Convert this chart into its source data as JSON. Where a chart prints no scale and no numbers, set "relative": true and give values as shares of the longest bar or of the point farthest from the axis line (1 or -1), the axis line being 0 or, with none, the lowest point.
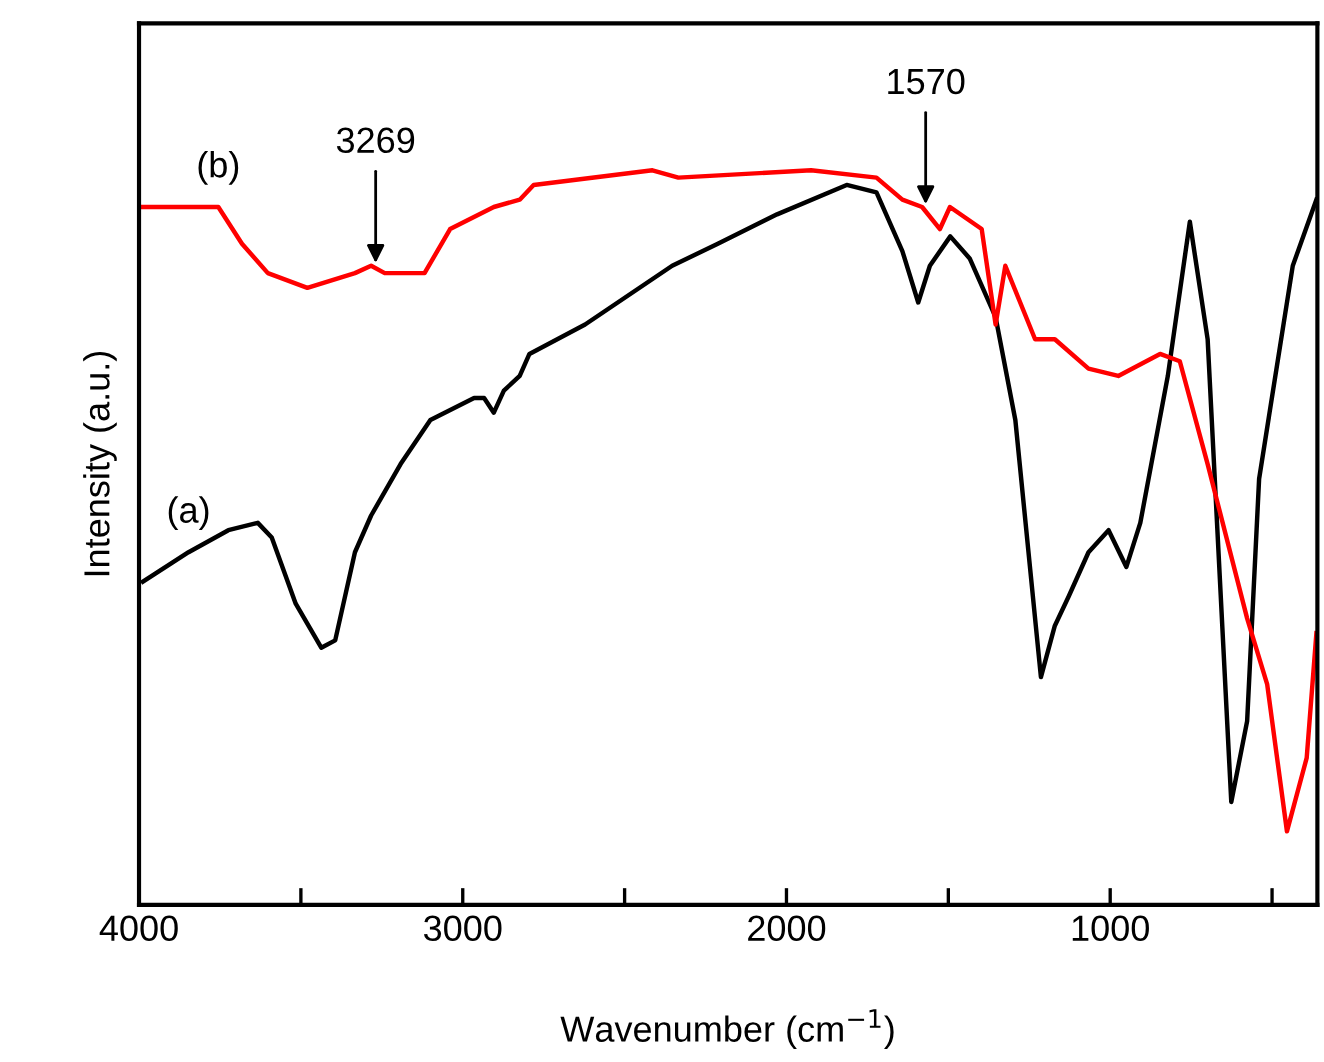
{
  "chart_data": {
    "type": "line",
    "relative": true,
    "xlabel": "Wavenumber (cm$^{−1}$)",
    "ylabel": "Intensity (a.u.)",
    "xlim": [
      4000,
      360
    ],
    "xticks": [
      4000,
      {
        "value": 3500,
        "label": null
      },
      3000,
      {
        "value": 2500,
        "label": null
      },
      2000,
      {
        "value": 1500,
        "label": null
      },
      1000,
      {
        "value": 500,
        "label": null
      }
    ],
    "grid": false,
    "legend": false,
    "line_style": "solid",
    "marker": "none",
    "series": [
      {
        "name": "(a)",
        "color": "#000000",
        "x": [
          3988,
          3847,
          3724,
          3633,
          3590,
          3516,
          3437,
          3394,
          3333,
          3283,
          3192,
          3100,
          2965,
          2934,
          2904,
          2873,
          2824,
          2794,
          2622,
          2353,
          2212,
          2029,
          1814,
          1722,
          1642,
          1593,
          1557,
          1494,
          1434,
          1354,
          1293,
          1214,
          1171,
          1128,
          1067,
          1005,
          950,
          907,
          822,
          754,
          699,
          626,
          577,
          540,
          497,
          436,
          363
        ],
        "values": [
          0.44,
          0.48,
          0.51,
          0.52,
          0.5,
          0.41,
          0.35,
          0.36,
          0.48,
          0.53,
          0.6,
          0.66,
          0.69,
          0.69,
          0.67,
          0.7,
          0.72,
          0.75,
          0.79,
          0.87,
          0.9,
          0.94,
          0.98,
          0.97,
          0.89,
          0.82,
          0.87,
          0.91,
          0.88,
          0.8,
          0.66,
          0.31,
          0.38,
          0.42,
          0.48,
          0.51,
          0.46,
          0.52,
          0.72,
          0.93,
          0.77,
          0.14,
          0.25,
          0.58,
          0.7,
          0.87,
          0.96
        ]
      },
      {
        "name": "(b)",
        "color": "#ff0000",
        "x": [
          4000,
          3755,
          3682,
          3602,
          3480,
          3333,
          3283,
          3241,
          3118,
          3039,
          2904,
          2824,
          2781,
          2414,
          2334,
          1924,
          1722,
          1642,
          1581,
          1526,
          1495,
          1397,
          1354,
          1324,
          1232,
          1171,
          1067,
          975,
          846,
          785,
          699,
          577,
          515,
          454,
          393,
          363
        ],
        "values": [
          0.95,
          0.95,
          0.9,
          0.86,
          0.84,
          0.86,
          0.87,
          0.86,
          0.86,
          0.92,
          0.95,
          0.96,
          0.98,
          1.0,
          0.99,
          1.0,
          0.99,
          0.96,
          0.95,
          0.92,
          0.95,
          0.92,
          0.79,
          0.87,
          0.77,
          0.77,
          0.73,
          0.72,
          0.75,
          0.74,
          0.6,
          0.39,
          0.3,
          0.1,
          0.2,
          0.37
        ]
      }
    ],
    "annotations": [
      {
        "text": "3269",
        "x": 3269,
        "y": 0.87
      },
      {
        "text": "1570",
        "x": 1570,
        "y": 0.95
      }
    ]
  }
}
